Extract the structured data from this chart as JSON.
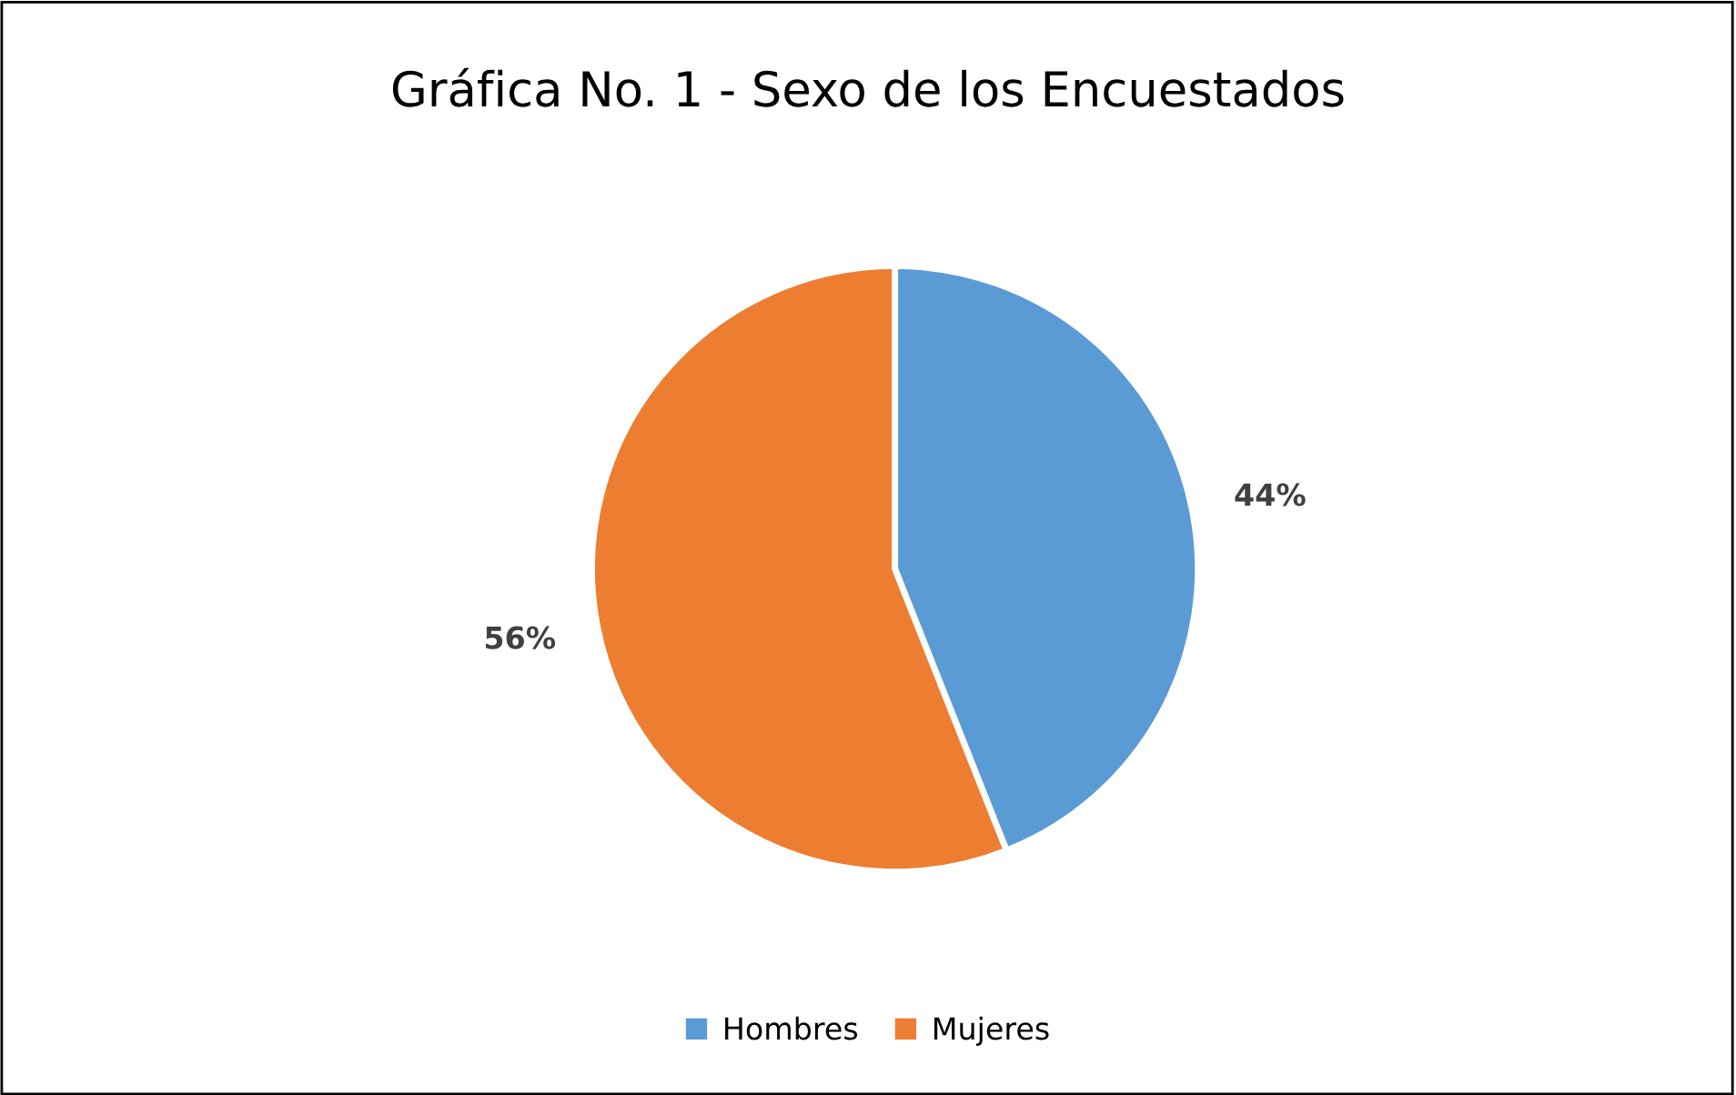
{
  "chart_data": {
    "type": "pie",
    "title": "Gráfica No. 1 - Sexo de los Encuestados",
    "categories": [
      "Hombres",
      "Mujeres"
    ],
    "values": [
      44,
      56
    ],
    "colors": [
      "#5b9bd5",
      "#ed7d31"
    ],
    "value_labels": [
      "44%",
      "56%"
    ],
    "legend": "bottom"
  }
}
